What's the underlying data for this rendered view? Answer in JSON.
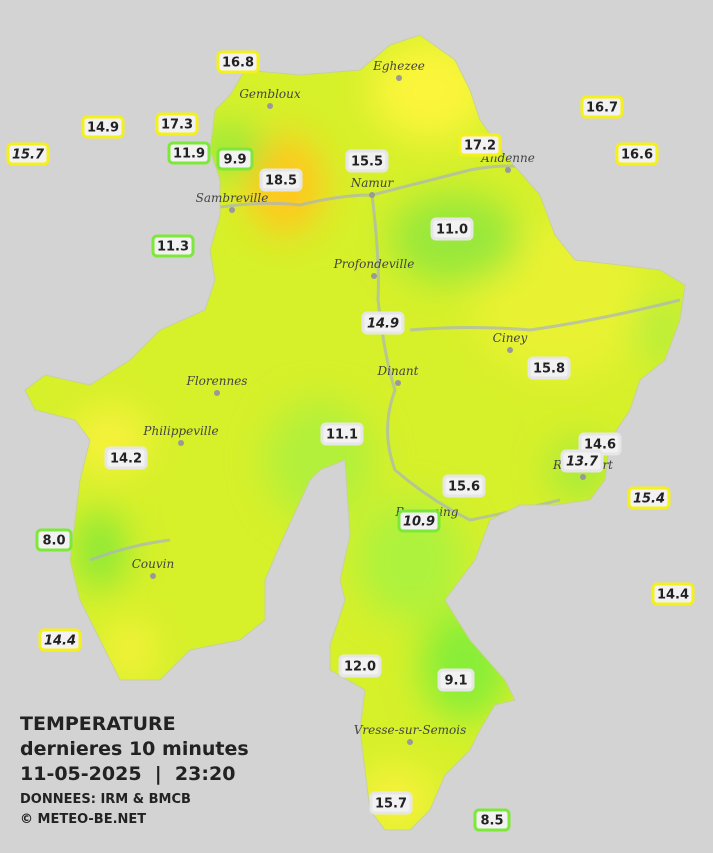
{
  "title": "TEMPERATURE",
  "subtitle": "dernieres 10 minutes",
  "timestamp": "11-05-2025  |  23:20",
  "source": "DONNEES: IRM & BMCB",
  "copyright": "© METEO-BE.NET",
  "cities": [
    "Eghezee",
    "Gembloux",
    "Andenne",
    "Namur",
    "Sambreville",
    "Profondeville",
    "Ciney",
    "Dinant",
    "Florennes",
    "Philippeville",
    "Rochefort",
    "Beauraing",
    "Couvin",
    "Vresse-sur-Semois"
  ],
  "stations": [
    {
      "label": "16.8",
      "italic": false,
      "border": "#f4f01c"
    },
    {
      "label": "17.3",
      "italic": false,
      "border": "#f4f01c"
    },
    {
      "label": "14.9",
      "italic": false,
      "border": "#f4f01c"
    },
    {
      "label": "15.7",
      "italic": true,
      "border": "#f4f01c"
    },
    {
      "label": "11.9",
      "italic": false,
      "border": "#7de83a"
    },
    {
      "label": "9.9",
      "italic": false,
      "border": "#7de83a"
    },
    {
      "label": "18.5",
      "italic": false,
      "border": "#e6e6e6"
    },
    {
      "label": "15.5",
      "italic": false,
      "border": "#e6e6e6"
    },
    {
      "label": "17.2",
      "italic": false,
      "border": "#f4f01c"
    },
    {
      "label": "16.7",
      "italic": false,
      "border": "#f4f01c"
    },
    {
      "label": "16.6",
      "italic": false,
      "border": "#f4f01c"
    },
    {
      "label": "11.0",
      "italic": false,
      "border": "#e6e6e6"
    },
    {
      "label": "11.3",
      "italic": false,
      "border": "#7de83a"
    },
    {
      "label": "14.9",
      "italic": true,
      "border": "#e6e6e6"
    },
    {
      "label": "15.8",
      "italic": false,
      "border": "#e6e6e6"
    },
    {
      "label": "11.1",
      "italic": false,
      "border": "#e6e6e6"
    },
    {
      "label": "14.2",
      "italic": false,
      "border": "#e6e6e6"
    },
    {
      "label": "14.6",
      "italic": false,
      "border": "#e6e6e6"
    },
    {
      "label": "13.7",
      "italic": true,
      "border": "#e6e6e6"
    },
    {
      "label": "15.4",
      "italic": true,
      "border": "#f4f01c"
    },
    {
      "label": "15.6",
      "italic": false,
      "border": "#e6e6e6"
    },
    {
      "label": "10.9",
      "italic": true,
      "border": "#7de83a"
    },
    {
      "label": "8.0",
      "italic": false,
      "border": "#7de83a"
    },
    {
      "label": "14.4",
      "italic": false,
      "border": "#f4f01c"
    },
    {
      "label": "14.4",
      "italic": true,
      "border": "#f4f01c"
    },
    {
      "label": "12.0",
      "italic": false,
      "border": "#e6e6e6"
    },
    {
      "label": "9.1",
      "italic": false,
      "border": "#e6e6e6"
    },
    {
      "label": "15.7",
      "italic": false,
      "border": "#e6e6e6"
    },
    {
      "label": "8.5",
      "italic": false,
      "border": "#7de83a"
    }
  ]
}
